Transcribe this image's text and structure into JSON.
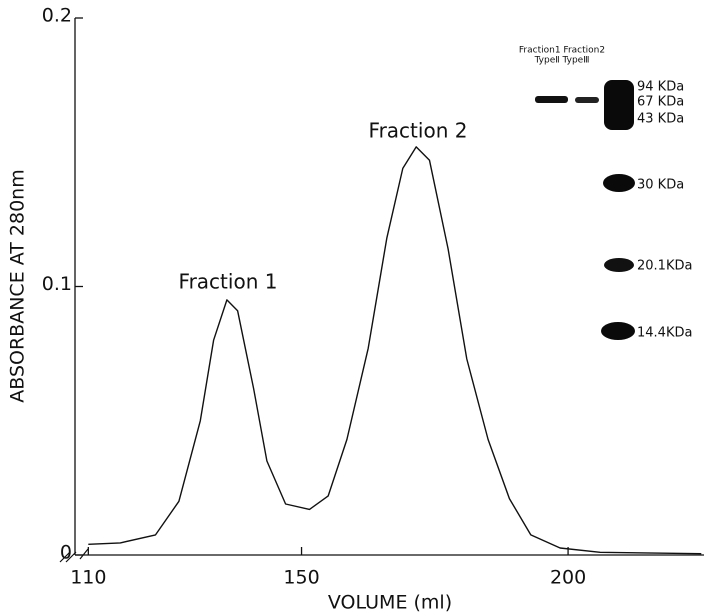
{
  "chart_data": {
    "type": "line",
    "x_label": "VOLUME (ml)",
    "y_label": "ABSORBANCE AT 280nm",
    "x": [
      110,
      116,
      122.6,
      127,
      131,
      133.5,
      136,
      138,
      141,
      143.5,
      147,
      151.5,
      155,
      158.5,
      162.5,
      166,
      169,
      171.5,
      174,
      177.5,
      181,
      185,
      189,
      193,
      198.5,
      206,
      225
    ],
    "values": [
      0.004,
      0.0045,
      0.0075,
      0.02,
      0.05,
      0.08,
      0.095,
      0.091,
      0.062,
      0.035,
      0.019,
      0.017,
      0.022,
      0.043,
      0.077,
      0.118,
      0.144,
      0.152,
      0.147,
      0.114,
      0.073,
      0.043,
      0.021,
      0.0075,
      0.0026,
      0.001,
      0.0005
    ],
    "color": "#111111",
    "xlim": [
      107.5,
      225.5
    ],
    "ylim": [
      0,
      0.2
    ],
    "xticks": [
      110,
      150,
      200
    ],
    "yticks": [
      0,
      0.1,
      0.2
    ],
    "annotations": [
      "Fraction 1",
      "Fraction 2"
    ],
    "inset": {
      "lane_labels": [
        "Fraction1 Fraction2",
        "TypeⅡ TypeⅢ"
      ],
      "markers": [
        "94 KDa",
        "67 KDa",
        "43 KDa",
        "30 KDa",
        "20.1KDa",
        "14.4KDa"
      ]
    }
  }
}
